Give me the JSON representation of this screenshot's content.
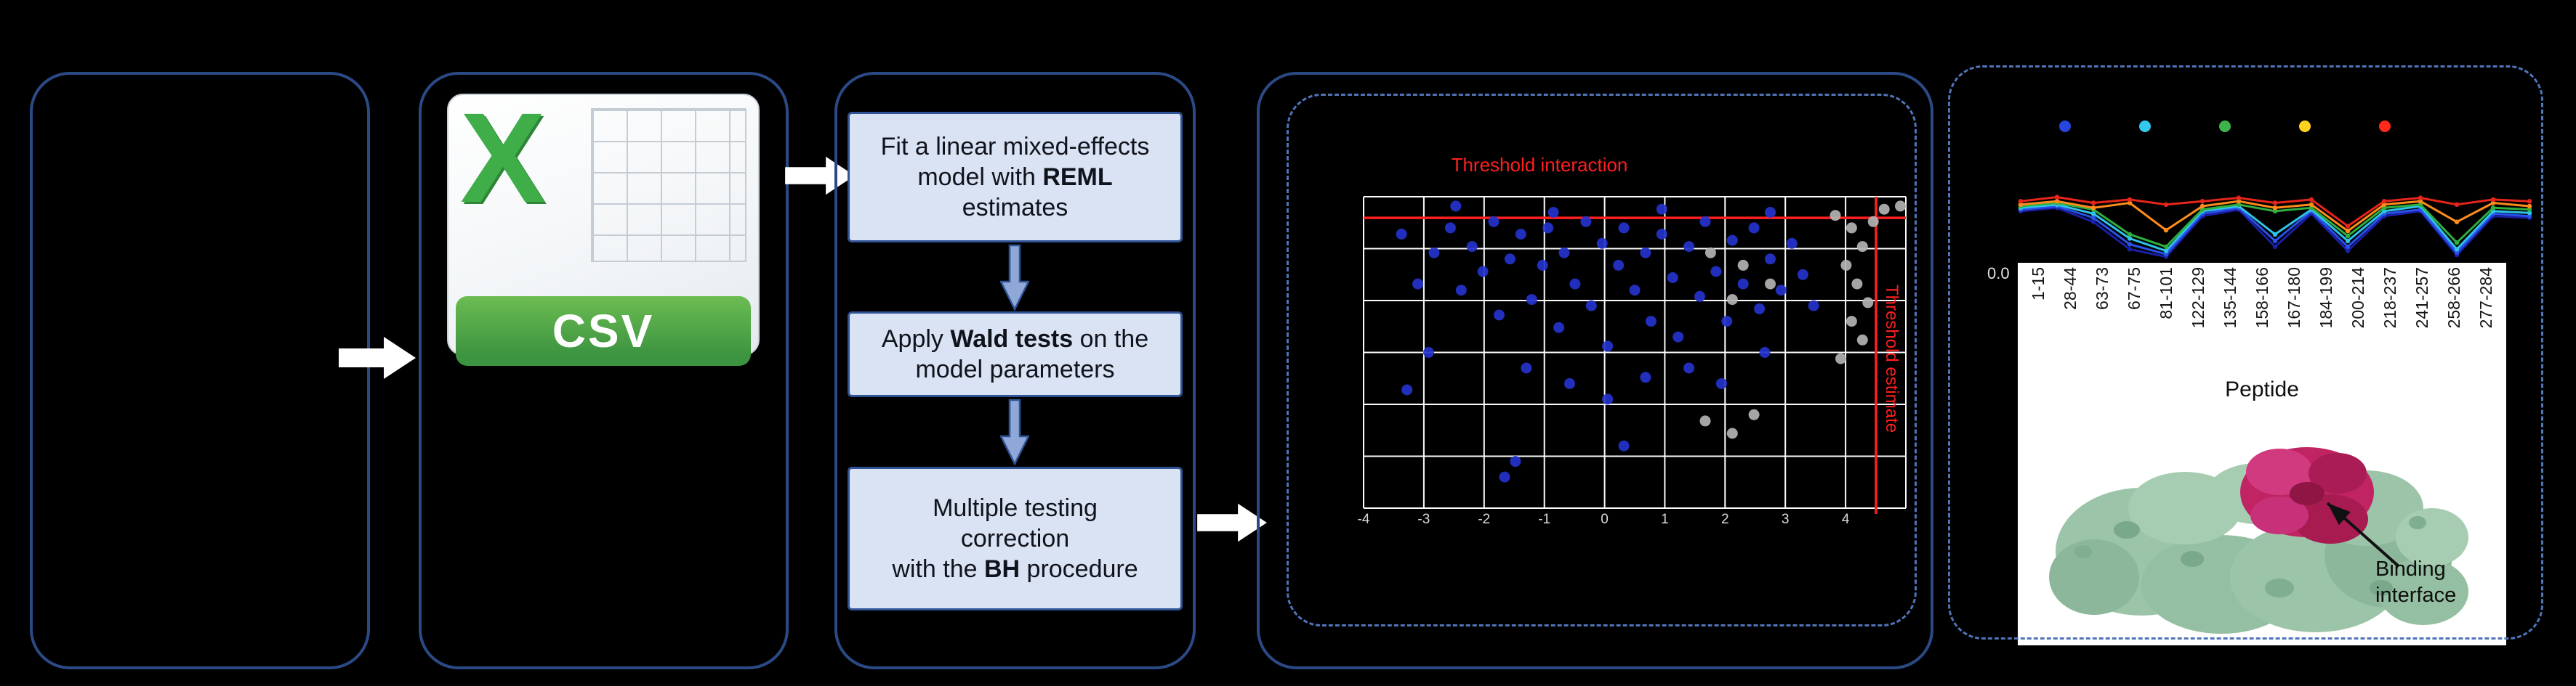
{
  "figure": {
    "background": "#000000"
  },
  "palette": {
    "panel_border": "#2b4a85",
    "dashed_border": "#4f74b8",
    "flow_fill": "#dae3f3",
    "flow_border": "#2f5496",
    "threshold_red": "#ff1f1f",
    "csv_green": "#3fae49",
    "banner_green": "#3c9440",
    "protein_green": "#9cc4a8",
    "binding_magenta": "#c02463"
  },
  "csv": {
    "letter": "X",
    "label": "CSV"
  },
  "pipeline": {
    "box1": {
      "t1": "Fit a linear mixed-effects model with ",
      "b": "REML",
      "t2": " estimates"
    },
    "box2": {
      "t1": "Apply ",
      "b": "Wald tests",
      "t2": " on the model parameters"
    },
    "box3": {
      "l1": "Multiple testing",
      "l2": "correction",
      "t1": "with the ",
      "b": "BH",
      "t2": " procedure"
    }
  },
  "binding_label": {
    "text": "Binding interface"
  },
  "chart_data": [
    {
      "type": "scatter",
      "title": "Threshold interaction",
      "x_threshold_label": "Threshold estimate",
      "threshold_color": "#ff1f1f",
      "x_ticks": [
        "-4",
        "-3",
        "-2",
        "-1",
        "0",
        "1",
        "2",
        "3",
        "4"
      ],
      "grid": {
        "cols": 9,
        "rows": 6
      },
      "thresholds": {
        "h_frac": 0.068,
        "v_frac": 0.945
      },
      "note": "point coordinates are fractions of plot area (x right, y down), estimated from pixels",
      "series": [
        {
          "name": "significant-peptides",
          "color": "#2433cc",
          "points": [
            [
              0.17,
              0.03
            ],
            [
              0.35,
              0.05
            ],
            [
              0.55,
              0.04
            ],
            [
              0.75,
              0.05
            ],
            [
              0.07,
              0.12
            ],
            [
              0.1,
              0.28
            ],
            [
              0.13,
              0.18
            ],
            [
              0.16,
              0.1
            ],
            [
              0.18,
              0.3
            ],
            [
              0.2,
              0.16
            ],
            [
              0.22,
              0.24
            ],
            [
              0.24,
              0.08
            ],
            [
              0.25,
              0.38
            ],
            [
              0.27,
              0.2
            ],
            [
              0.29,
              0.12
            ],
            [
              0.31,
              0.33
            ],
            [
              0.33,
              0.22
            ],
            [
              0.34,
              0.1
            ],
            [
              0.36,
              0.42
            ],
            [
              0.37,
              0.18
            ],
            [
              0.39,
              0.28
            ],
            [
              0.41,
              0.08
            ],
            [
              0.42,
              0.35
            ],
            [
              0.44,
              0.15
            ],
            [
              0.45,
              0.48
            ],
            [
              0.47,
              0.22
            ],
            [
              0.48,
              0.1
            ],
            [
              0.5,
              0.3
            ],
            [
              0.52,
              0.18
            ],
            [
              0.53,
              0.4
            ],
            [
              0.55,
              0.12
            ],
            [
              0.57,
              0.26
            ],
            [
              0.58,
              0.45
            ],
            [
              0.6,
              0.16
            ],
            [
              0.62,
              0.32
            ],
            [
              0.63,
              0.08
            ],
            [
              0.65,
              0.24
            ],
            [
              0.67,
              0.4
            ],
            [
              0.68,
              0.14
            ],
            [
              0.7,
              0.28
            ],
            [
              0.72,
              0.1
            ],
            [
              0.73,
              0.36
            ],
            [
              0.75,
              0.2
            ],
            [
              0.77,
              0.3
            ],
            [
              0.79,
              0.15
            ],
            [
              0.81,
              0.25
            ],
            [
              0.3,
              0.55
            ],
            [
              0.38,
              0.6
            ],
            [
              0.45,
              0.65
            ],
            [
              0.52,
              0.58
            ],
            [
              0.26,
              0.9
            ],
            [
              0.28,
              0.85
            ],
            [
              0.48,
              0.8
            ],
            [
              0.12,
              0.5
            ],
            [
              0.08,
              0.62
            ],
            [
              0.6,
              0.55
            ],
            [
              0.66,
              0.6
            ],
            [
              0.74,
              0.5
            ],
            [
              0.83,
              0.35
            ]
          ]
        },
        {
          "name": "non-significant-peptides",
          "color": "#b3b3b3",
          "points": [
            [
              0.87,
              0.06
            ],
            [
              0.9,
              0.1
            ],
            [
              0.92,
              0.16
            ],
            [
              0.89,
              0.22
            ],
            [
              0.91,
              0.28
            ],
            [
              0.93,
              0.34
            ],
            [
              0.9,
              0.4
            ],
            [
              0.92,
              0.46
            ],
            [
              0.88,
              0.52
            ],
            [
              0.94,
              0.08
            ],
            [
              0.96,
              0.04
            ],
            [
              0.99,
              0.03
            ],
            [
              0.64,
              0.18
            ],
            [
              0.7,
              0.22
            ],
            [
              0.75,
              0.28
            ],
            [
              0.68,
              0.33
            ],
            [
              0.63,
              0.72
            ],
            [
              0.68,
              0.76
            ],
            [
              0.72,
              0.7
            ]
          ]
        }
      ]
    },
    {
      "type": "line",
      "xlabel": "Peptide",
      "y_origin_label": "0.0",
      "x_labels": [
        "1-15",
        "28-44",
        "63-73",
        "67-75",
        "81-101",
        "122-129",
        "135-144",
        "158-166",
        "167-180",
        "184-199",
        "200-214",
        "218-237",
        "241-257",
        "258-266",
        "277-284"
      ],
      "legend_dot_colors": [
        "#2746e0",
        "#35c8ee",
        "#3cb44b",
        "#ffd21f",
        "#ff2a1a"
      ],
      "note": "series values are fractions of chart height (1 = top), estimated from pixels",
      "series": [
        {
          "name": "replicate-navy",
          "color": "#1a1fa8",
          "values": [
            0.58,
            0.62,
            0.45,
            0.12,
            0.03,
            0.52,
            0.6,
            0.15,
            0.55,
            0.1,
            0.52,
            0.58,
            0.05,
            0.52,
            0.5
          ]
        },
        {
          "name": "replicate-blue",
          "color": "#2a52e8",
          "values": [
            0.6,
            0.64,
            0.5,
            0.18,
            0.06,
            0.55,
            0.62,
            0.22,
            0.58,
            0.15,
            0.55,
            0.6,
            0.08,
            0.55,
            0.52
          ]
        },
        {
          "name": "replicate-cyan",
          "color": "#2ec4e8",
          "values": [
            0.62,
            0.66,
            0.55,
            0.25,
            0.1,
            0.58,
            0.64,
            0.3,
            0.6,
            0.22,
            0.58,
            0.64,
            0.12,
            0.58,
            0.56
          ]
        },
        {
          "name": "replicate-green",
          "color": "#2fae3f",
          "values": [
            0.64,
            0.68,
            0.6,
            0.3,
            0.15,
            0.6,
            0.66,
            0.58,
            0.62,
            0.28,
            0.62,
            0.66,
            0.2,
            0.62,
            0.6
          ]
        },
        {
          "name": "replicate-orange",
          "color": "#ff8c1a",
          "values": [
            0.66,
            0.7,
            0.62,
            0.68,
            0.35,
            0.64,
            0.7,
            0.62,
            0.66,
            0.34,
            0.66,
            0.7,
            0.45,
            0.68,
            0.64
          ]
        },
        {
          "name": "replicate-red",
          "color": "#e8251a",
          "values": [
            0.7,
            0.75,
            0.68,
            0.72,
            0.66,
            0.7,
            0.74,
            0.68,
            0.72,
            0.4,
            0.7,
            0.74,
            0.66,
            0.72,
            0.7
          ]
        }
      ]
    }
  ]
}
